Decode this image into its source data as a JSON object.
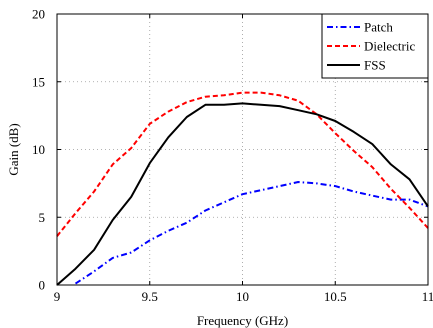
{
  "chart_data": {
    "type": "line",
    "title": "",
    "xlabel": "Frequency (GHz)",
    "ylabel": "Gain (dB)",
    "xlim": [
      9,
      11
    ],
    "ylim": [
      0,
      20
    ],
    "xticks": [
      9,
      9.5,
      10,
      10.5,
      11
    ],
    "yticks": [
      0,
      5,
      10,
      15,
      20
    ],
    "xtick_labels": [
      "9",
      "9.5",
      "10",
      "10.5",
      "11"
    ],
    "ytick_labels": [
      "0",
      "5",
      "10",
      "15",
      "20"
    ],
    "grid": true,
    "legend_position": "top-right",
    "series": [
      {
        "name": "Patch",
        "color": "#0000ff",
        "dash": "dashdot",
        "x": [
          9.1,
          9.2,
          9.3,
          9.4,
          9.5,
          9.6,
          9.7,
          9.8,
          9.9,
          10.0,
          10.1,
          10.2,
          10.3,
          10.4,
          10.5,
          10.6,
          10.7,
          10.8,
          10.9,
          11.0
        ],
        "y": [
          0.1,
          1.0,
          2.0,
          2.4,
          3.3,
          4.0,
          4.6,
          5.5,
          6.1,
          6.7,
          7.0,
          7.3,
          7.6,
          7.5,
          7.3,
          6.9,
          6.6,
          6.3,
          6.3,
          5.8
        ]
      },
      {
        "name": "Dielectric",
        "color": "#ff0000",
        "dash": "dashed",
        "x": [
          9.0,
          9.1,
          9.2,
          9.3,
          9.4,
          9.5,
          9.6,
          9.7,
          9.8,
          9.9,
          10.0,
          10.1,
          10.2,
          10.3,
          10.4,
          10.5,
          10.6,
          10.7,
          10.8,
          10.9,
          11.0
        ],
        "y": [
          3.6,
          5.3,
          6.9,
          8.9,
          10.1,
          11.9,
          12.8,
          13.5,
          13.9,
          14.0,
          14.2,
          14.2,
          14.0,
          13.6,
          12.6,
          11.2,
          9.9,
          8.7,
          7.1,
          5.7,
          4.2
        ]
      },
      {
        "name": "FSS",
        "color": "#000000",
        "dash": "solid",
        "x": [
          9.0,
          9.1,
          9.2,
          9.3,
          9.4,
          9.5,
          9.6,
          9.7,
          9.8,
          9.9,
          10.0,
          10.1,
          10.2,
          10.3,
          10.4,
          10.5,
          10.6,
          10.7,
          10.8,
          10.9,
          11.0
        ],
        "y": [
          0.0,
          1.2,
          2.6,
          4.8,
          6.5,
          9.0,
          10.9,
          12.4,
          13.3,
          13.3,
          13.4,
          13.3,
          13.2,
          12.9,
          12.6,
          12.1,
          11.3,
          10.4,
          8.9,
          7.8,
          5.8
        ]
      }
    ]
  }
}
